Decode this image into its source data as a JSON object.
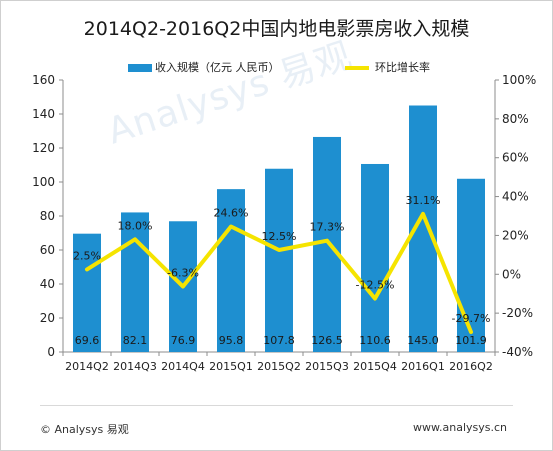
{
  "chart_data": {
    "type": "bar",
    "title": "2014Q2-2016Q2中国内地电影票房收入规模",
    "categories": [
      "2014Q2",
      "2014Q3",
      "2014Q4",
      "2015Q1",
      "2015Q2",
      "2015Q3",
      "2015Q4",
      "2016Q1",
      "2016Q2"
    ],
    "series": [
      {
        "name": "收入规模（亿元 人民币）",
        "type": "bar",
        "axis": "left",
        "color": "#1e8fd0",
        "values": [
          69.6,
          82.1,
          76.9,
          95.8,
          107.8,
          126.5,
          110.6,
          145.0,
          101.9
        ],
        "labels": [
          "69.6",
          "82.1",
          "76.9",
          "95.8",
          "107.8",
          "126.5",
          "110.6",
          "145.0",
          "101.9"
        ]
      },
      {
        "name": "环比增长率",
        "type": "line",
        "axis": "right",
        "color": "#f5e400",
        "values": [
          2.5,
          18.0,
          -6.3,
          24.6,
          12.5,
          17.3,
          -12.5,
          31.1,
          -29.7
        ],
        "labels": [
          "2.5%",
          "18.0%",
          "-6.3%",
          "24.6%",
          "12.5%",
          "17.3%",
          "-12.5%",
          "31.1%",
          "-29.7%"
        ]
      }
    ],
    "y_left": {
      "min": 0,
      "max": 160,
      "ticks": [
        "0",
        "20",
        "40",
        "60",
        "80",
        "100",
        "120",
        "140",
        "160"
      ]
    },
    "y_right": {
      "min": -40,
      "max": 100,
      "ticks": [
        "-40%",
        "-20%",
        "0%",
        "20%",
        "40%",
        "60%",
        "80%",
        "100%"
      ]
    },
    "legend_position": "top-center",
    "grid": false
  },
  "footer": {
    "source": "© Analysys 易观",
    "website": "www.analysys.cn"
  },
  "watermark": "Analysys 易观"
}
